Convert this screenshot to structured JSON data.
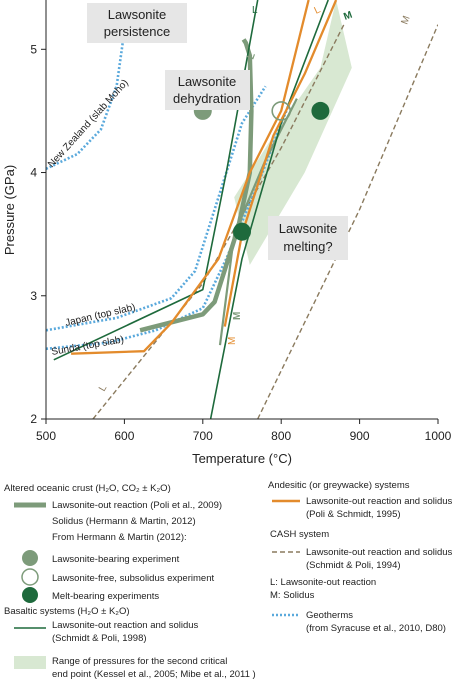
{
  "chart_data": {
    "type": "line",
    "xlabel": "Temperature (°C)",
    "ylabel": "Pressure (GPa)",
    "xlim": [
      500,
      1000
    ],
    "ylim": [
      2,
      5.4
    ],
    "x_ticks": [
      "500",
      "600",
      "700",
      "800",
      "900",
      "1000"
    ],
    "y_ticks": [
      "2",
      "3",
      "4",
      "5"
    ],
    "grid": false,
    "colors": {
      "poli2009": "#7d9b7a",
      "basaltic": "#1e6a3c",
      "andesitic": "#e38b2c",
      "cash": "#8a7a5e",
      "geotherm": "#5aa9dc",
      "band": "#d8e8d2",
      "experiment_bearing": "#7d9b7a",
      "experiment_free": "#ffffff",
      "experiment_melt": "#1e6a3c"
    },
    "callouts": [
      "Lawsonite persistence",
      "Lawsonite dehydration",
      "Lawsonite melting?"
    ],
    "curve_labels": {
      "geotherm_nz": "New Zealand (slab Moho)",
      "geotherm_japan": "Japan (top slab)",
      "geotherm_sunda": "Sunda (top slab)",
      "L_basaltic": "L",
      "L_andesitic": "L",
      "L_cash": "L",
      "L_poli2009": "L",
      "M_basaltic": "M",
      "M_andesitic": "M",
      "M_cash": "M",
      "M_poli2009": "M"
    },
    "series": [
      {
        "name": "Lawsonite-out reaction (Poli et al., 2009)",
        "kind": "lawsonite_out_poli2009",
        "x": [
          620,
          700,
          715,
          745,
          760,
          762,
          760,
          755,
          752
        ],
        "y": [
          2.72,
          2.85,
          2.95,
          3.55,
          4.0,
          4.5,
          4.95,
          5.05,
          5.08
        ]
      },
      {
        "name": "Solidus (Hermann & Martin, 2012)",
        "kind": "solidus_hermann",
        "x": [
          722,
          740,
          780,
          820
        ],
        "y": [
          2.6,
          3.5,
          4.1,
          4.6
        ]
      },
      {
        "name": "Basaltic lawsonite-out reaction",
        "kind": "basaltic_L",
        "x": [
          510,
          700,
          730,
          770
        ],
        "y": [
          2.48,
          3.05,
          4.0,
          5.4
        ]
      },
      {
        "name": "Basaltic solidus",
        "kind": "basaltic_M",
        "x": [
          710,
          750,
          800,
          860
        ],
        "y": [
          2.0,
          3.3,
          4.4,
          5.4
        ]
      },
      {
        "name": "Andesitic lawsonite-out reaction",
        "kind": "andesitic_L",
        "x": [
          532,
          625,
          660,
          720,
          760,
          800,
          835
        ],
        "y": [
          2.53,
          2.55,
          2.78,
          3.3,
          4.0,
          4.5,
          5.4
        ]
      },
      {
        "name": "Andesitic solidus",
        "kind": "andesitic_M",
        "x": [
          728,
          750,
          790,
          830,
          870
        ],
        "y": [
          2.75,
          3.5,
          4.3,
          4.8,
          5.4
        ]
      },
      {
        "name": "CASH lawsonite-out reaction",
        "kind": "cash_L",
        "x": [
          560,
          700,
          800,
          880
        ],
        "y": [
          2.0,
          3.1,
          4.2,
          5.2
        ]
      },
      {
        "name": "CASH solidus",
        "kind": "cash_M",
        "x": [
          770,
          900,
          1000
        ],
        "y": [
          2.0,
          3.7,
          5.2
        ]
      },
      {
        "name": "Geotherm New Zealand (slab Moho)",
        "kind": "geotherm_nz",
        "x": [
          500,
          540,
          570,
          590,
          600
        ],
        "y": [
          4.03,
          4.15,
          4.35,
          4.7,
          5.15
        ]
      },
      {
        "name": "Geotherm Japan (top slab)",
        "kind": "geotherm_japan",
        "x": [
          500,
          590,
          660,
          690,
          720,
          750,
          780
        ],
        "y": [
          2.72,
          2.82,
          2.98,
          3.2,
          3.8,
          4.4,
          4.7
        ]
      },
      {
        "name": "Geotherm Sunda (top slab)",
        "kind": "geotherm_sunda",
        "x": [
          500,
          580,
          640,
          700,
          730,
          770,
          800,
          810
        ],
        "y": [
          2.57,
          2.62,
          2.72,
          2.9,
          3.3,
          3.9,
          4.4,
          4.55
        ]
      }
    ],
    "band": {
      "name": "Range of pressures for the second critical end point",
      "upper": {
        "x": [
          740,
          790,
          850,
          870
        ],
        "y": [
          3.8,
          4.3,
          4.85,
          5.4
        ]
      },
      "lower": {
        "x": [
          760,
          830,
          890,
          870
        ],
        "y": [
          3.25,
          4.0,
          4.85,
          5.4
        ]
      }
    },
    "experiments": [
      {
        "kind": "bearing",
        "x": 700,
        "y": 4.5
      },
      {
        "kind": "free",
        "x": 800,
        "y": 4.5
      },
      {
        "kind": "melt",
        "x": 850,
        "y": 4.5
      },
      {
        "kind": "melt",
        "x": 750,
        "y": 3.52
      }
    ]
  },
  "legend": {
    "altered_heading": "Altered oceanic crust (H₂O, CO₂ ± K₂O)",
    "poli2009": "Lawsonite-out reaction (Poli et al., 2009)",
    "solidus_hermann": "Solidus (Hermann & Martin, 2012)",
    "from_hermann": "From Hermann & Martin (2012):",
    "bearing": "Lawsonite-bearing experiment",
    "free": "Lawsonite-free, subsolidus experiment",
    "melt": "Melt-bearing experiments",
    "basaltic_heading": "Basaltic systems (H₂O ± K₂O)",
    "basaltic_line1": "Lawsonite-out reaction and solidus",
    "basaltic_line2": "(Schmidt & Poli, 1998)",
    "band_line1": "Range of pressures for the second critical",
    "band_line2": "end point (Kessel et al., 2005; Mibe et al., 2011 )",
    "andesitic_heading": "Andesitic (or greywacke) systems",
    "andesitic_line1": "Lawsonite-out reaction and solidus",
    "andesitic_line2": "(Poli & Schmidt, 1995)",
    "cash_heading": "CASH system",
    "cash_line1": "Lawsonite-out reaction and solidus",
    "cash_line2": "(Schmidt & Poli, 1994)",
    "key_L": "L: Lawsonite-out reaction",
    "key_M": "M: Solidus",
    "geotherms_line1": "Geotherms",
    "geotherms_line2": "(from Syracuse et al., 2010, D80)"
  }
}
